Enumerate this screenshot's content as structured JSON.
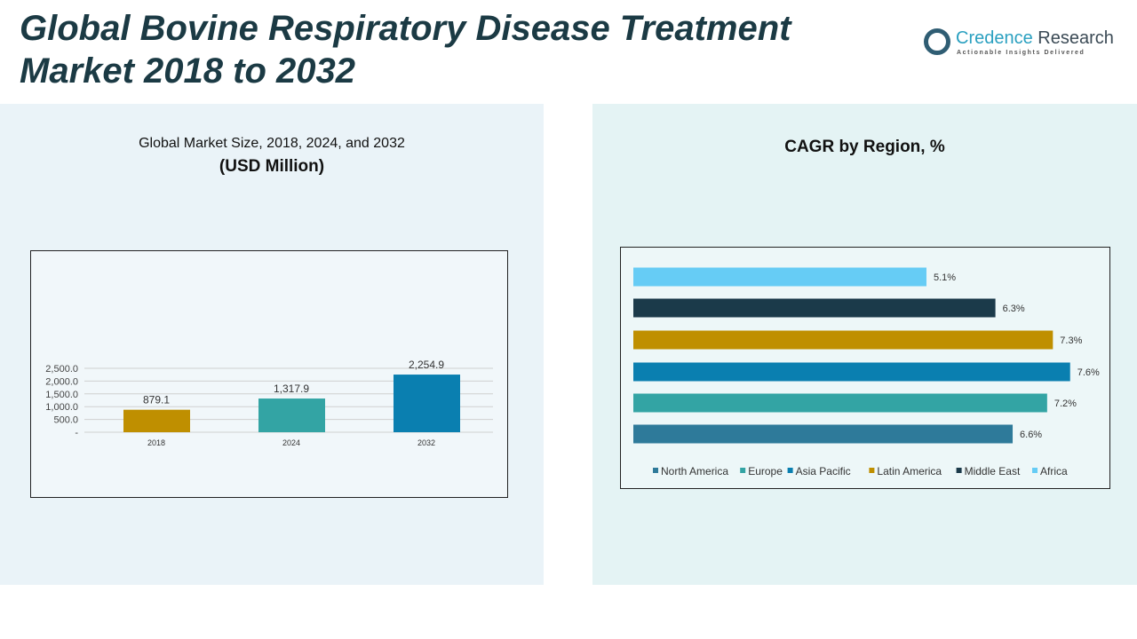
{
  "header": {
    "title_line1": "Global Bovine Respiratory Disease Treatment",
    "title_line2": "Market 2018 to 2032"
  },
  "logo": {
    "name_part1": "Credence",
    "name_part2": " Research",
    "tagline": "Actionable Insights Delivered"
  },
  "chart_data": [
    {
      "type": "bar",
      "title": "Global Market Size, 2018, 2024, and 2032",
      "subtitle": "(USD Million)",
      "categories": [
        "2018",
        "2024",
        "2032"
      ],
      "values": [
        879.1,
        1317.9,
        2254.9
      ],
      "value_labels": [
        "879.1",
        "1,317.9",
        "2,254.9"
      ],
      "colors": [
        "#bf8f00",
        "#33a4a4",
        "#0a7fb0"
      ],
      "ylim": [
        0,
        2500
      ],
      "yticks": [
        0,
        500,
        1000,
        1500,
        2000,
        2500
      ],
      "ytick_labels": [
        "-",
        "500.0",
        "1,000.0",
        "1,500.0",
        "2,000.0",
        "2,500.0"
      ],
      "grid": true
    },
    {
      "type": "bar",
      "orientation": "horizontal",
      "title": "CAGR by Region, %",
      "categories": [
        "North America",
        "Europe",
        "Asia Pacific",
        "Latin America",
        "Middle East",
        "Africa"
      ],
      "values": [
        6.6,
        7.2,
        7.6,
        7.3,
        6.3,
        5.1
      ],
      "value_labels": [
        "6.6%",
        "7.2%",
        "7.6%",
        "7.3%",
        "6.3%",
        "5.1%"
      ],
      "colors": [
        "#2e7a9a",
        "#33a4a4",
        "#0a7fb0",
        "#bf8f00",
        "#1b3a4a",
        "#66ccf5"
      ],
      "legend": "bottom"
    }
  ]
}
